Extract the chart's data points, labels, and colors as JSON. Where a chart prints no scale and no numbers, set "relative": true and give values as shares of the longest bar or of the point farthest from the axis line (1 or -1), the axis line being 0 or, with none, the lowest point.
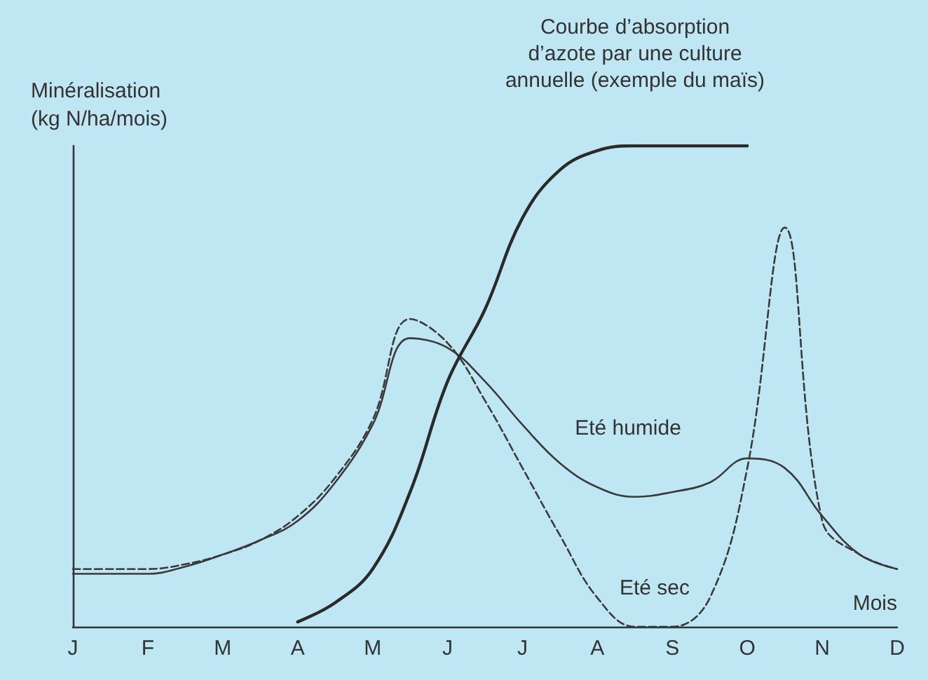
{
  "chart_data": {
    "type": "line",
    "relative": true,
    "ylabel": "Minéralisation\n(kg N/ha/mois)",
    "xlabel": "Mois",
    "categories": [
      "J",
      null,
      "F",
      null,
      "M",
      null,
      "A",
      null,
      "M",
      null,
      "J",
      null,
      "J",
      null,
      "A",
      null,
      "S",
      null,
      "O",
      null,
      "N",
      null,
      "D"
    ],
    "grid": false,
    "marker": "none",
    "series": [
      {
        "color": "#3a3a3a",
        "line_style": "solid",
        "values": [
          0.11,
          0.11,
          0.11,
          0.125,
          0.15,
          0.18,
          0.22,
          0.3,
          0.42,
          0.6,
          0.58,
          0.51,
          0.42,
          0.34,
          0.29,
          0.27,
          0.28,
          0.3,
          0.35,
          0.33,
          0.23,
          0.15,
          0.12
        ]
      },
      {
        "color": "#3a3a3a",
        "line_style": "dashed",
        "values": [
          0.12,
          0.12,
          0.12,
          0.13,
          0.15,
          0.18,
          0.23,
          0.31,
          0.43,
          0.64,
          0.59,
          0.47,
          0.33,
          0.19,
          0.06,
          0,
          0,
          0.06,
          0.33,
          0.83,
          0.22,
          0.15,
          0.12
        ]
      },
      {
        "color": "#2a2a2a",
        "line_style": "solid",
        "values": [
          null,
          null,
          null,
          null,
          null,
          null,
          0.01,
          0.05,
          0.12,
          0.28,
          0.51,
          0.66,
          0.85,
          0.95,
          0.99,
          1,
          1,
          1,
          1,
          null,
          null,
          null,
          null
        ]
      }
    ],
    "annotations": [
      "Courbe d’absorption\nd’azote par une culture\nannuelle (exemple du maïs)",
      "Eté humide",
      "Eté sec"
    ]
  }
}
